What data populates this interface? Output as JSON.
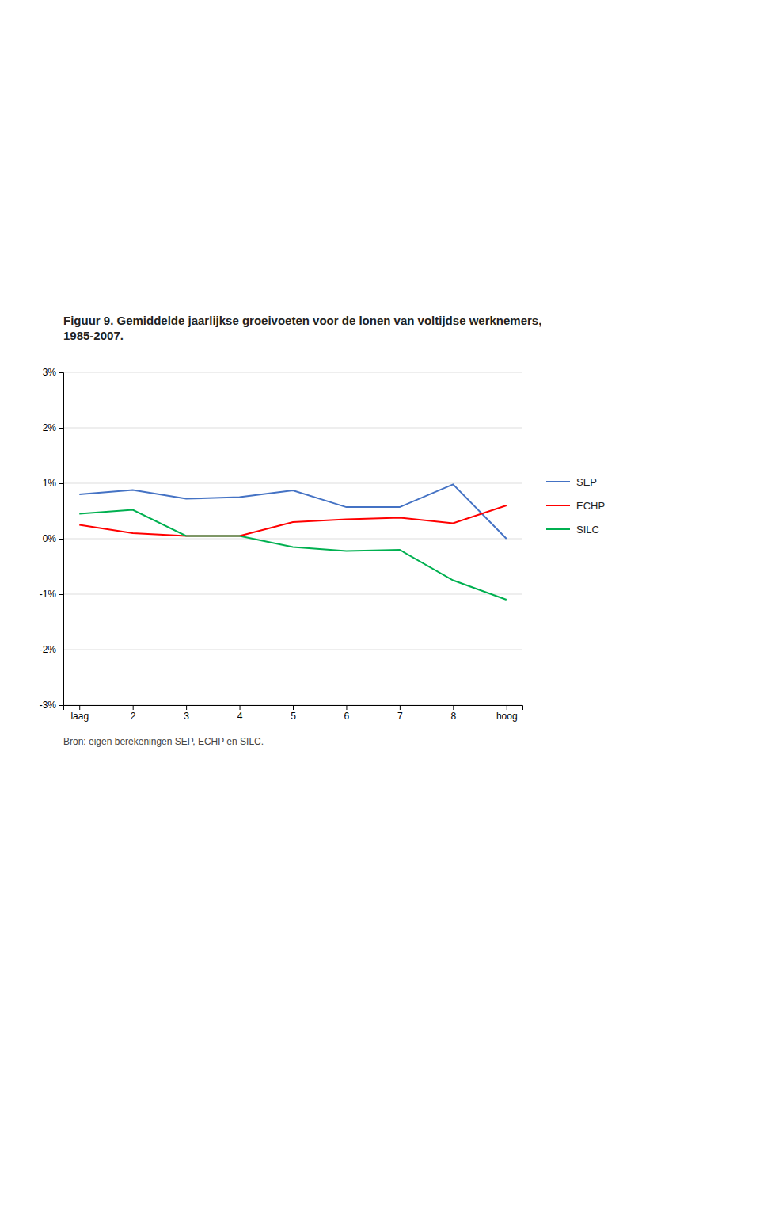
{
  "chart_data": {
    "type": "line",
    "title": "Figuur 9. Gemiddelde jaarlijkse groeivoeten voor de lonen van voltijdse werknemers,\n1985-2007.",
    "annotations": [
      "Bron: eigen berekeningen SEP, ECHP en SILC."
    ],
    "categories": [
      "laag",
      "2",
      "3",
      "4",
      "5",
      "6",
      "7",
      "8",
      "hoog"
    ],
    "series": [
      {
        "name": "SEP",
        "color": "#4472C4",
        "values": [
          0.8,
          0.88,
          0.72,
          0.75,
          0.87,
          0.57,
          0.57,
          0.98,
          0.0
        ]
      },
      {
        "name": "ECHP",
        "color": "#FF0000",
        "values": [
          0.25,
          0.1,
          0.05,
          0.05,
          0.3,
          0.35,
          0.38,
          0.28,
          0.6
        ]
      },
      {
        "name": "SILC",
        "color": "#00B050",
        "values": [
          0.45,
          0.52,
          0.05,
          0.05,
          -0.15,
          -0.22,
          -0.2,
          -0.75,
          -1.1
        ]
      }
    ],
    "ylim": [
      -3,
      3
    ],
    "yticks": [
      {
        "value": -3,
        "label": "-3%"
      },
      {
        "value": -2,
        "label": "-2%"
      },
      {
        "value": -1,
        "label": "-1%"
      },
      {
        "value": 0,
        "label": "0%"
      },
      {
        "value": 1,
        "label": "1%"
      },
      {
        "value": 2,
        "label": "2%"
      },
      {
        "value": 3,
        "label": "3%"
      }
    ],
    "grid": true,
    "legend": "right"
  }
}
